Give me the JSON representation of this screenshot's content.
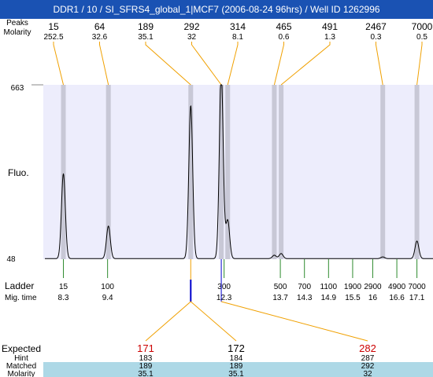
{
  "window": {
    "title": "DDR1 / 10 / SI_SFRS4_global_1|MCF7 (2006-08-24 96hrs) / Well ID 1262996"
  },
  "labels": {
    "peaks": "Peaks",
    "molarity": "Molarity",
    "fluo": "Fluo.",
    "ladder": "Ladder",
    "mig_time": "Mig. time",
    "expected": "Expected",
    "hint": "Hint",
    "matched": "Matched",
    "molarity_bottom": "Molarity"
  },
  "colors": {
    "title_bg": "#1a52b3",
    "plot_bg": "#ededfc",
    "peak_band": "#c8c8d6",
    "connector": "#f0a000",
    "trace": "#000000",
    "ladder_tick": "#2e8b2e",
    "expected_highlight": "#cc0000",
    "matched_bg": "#add8e6",
    "marker": "#0000cc"
  },
  "chart_data": {
    "type": "line",
    "ylabel": "Fluo.",
    "ylim": [
      48,
      663
    ],
    "y_ticks": [
      "663",
      "48"
    ],
    "x_range_mig_time": [
      7.8,
      17.5
    ],
    "peaks": [
      {
        "size": "15",
        "molarity": "252.5",
        "mig_time": 8.3,
        "height": 300
      },
      {
        "size": "64",
        "molarity": "32.6",
        "mig_time": 9.42,
        "height": 115
      },
      {
        "size": "189",
        "molarity": "35.1",
        "mig_time": 11.47,
        "height": 540
      },
      {
        "size": "292",
        "molarity": "32",
        "mig_time": 12.23,
        "height": 655
      },
      {
        "size": "314",
        "molarity": "8.1",
        "mig_time": 12.39,
        "height": 135
      },
      {
        "size": "465",
        "molarity": "0.6",
        "mig_time": 13.55,
        "height": 12
      },
      {
        "size": "491",
        "molarity": "1.3",
        "mig_time": 13.72,
        "height": 18
      },
      {
        "size": "2467",
        "molarity": "0.3",
        "mig_time": 16.25,
        "height": 6
      },
      {
        "size": "7000",
        "molarity": "0.5",
        "mig_time": 17.1,
        "height": 62
      }
    ],
    "ladder": [
      {
        "size": "15",
        "mig_time": "8.3",
        "t": 8.3
      },
      {
        "size": "100",
        "mig_time": "9.4",
        "t": 9.4
      },
      {
        "size": "300",
        "mig_time": "12.3",
        "t": 12.3
      },
      {
        "size": "500",
        "mig_time": "13.7",
        "t": 13.7
      },
      {
        "size": "700",
        "mig_time": "14.3",
        "t": 14.3
      },
      {
        "size": "1100",
        "mig_time": "14.9",
        "t": 14.9
      },
      {
        "size": "1900",
        "mig_time": "15.5",
        "t": 15.5
      },
      {
        "size": "2900",
        "mig_time": "16",
        "t": 16.0
      },
      {
        "size": "4900",
        "mig_time": "16.6",
        "t": 16.6
      },
      {
        "size": "7000",
        "mig_time": "17.1",
        "t": 17.1
      }
    ],
    "marker_mig_time": 11.47,
    "marker2_mig_time": 12.23,
    "expected": [
      {
        "expected": "171",
        "hint": "183",
        "matched": "189",
        "molarity": "35.1",
        "highlight": true
      },
      {
        "expected": "172",
        "hint": "184",
        "matched": "189",
        "molarity": "35.1",
        "highlight": false
      },
      {
        "expected": "282",
        "hint": "287",
        "matched": "292",
        "molarity": "32",
        "highlight": true
      }
    ]
  }
}
